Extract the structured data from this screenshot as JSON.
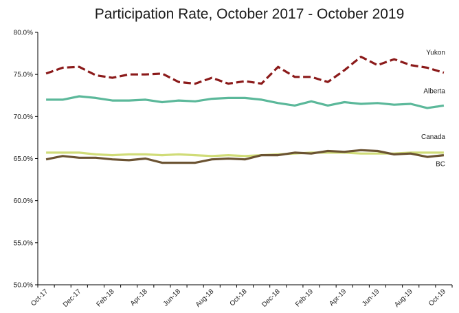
{
  "chart_data": {
    "type": "line",
    "title": "Participation Rate, October 2017 - October 2019",
    "xlabel": "",
    "ylabel": "",
    "grid": false,
    "legend": "inline labels at right end of lines",
    "ylim": [
      0.5,
      0.8
    ],
    "yticks": [
      0.5,
      0.55,
      0.6,
      0.65,
      0.7,
      0.75,
      0.8
    ],
    "ytick_labels": [
      "50.0%",
      "55.0%",
      "60.0%",
      "65.0%",
      "70.0%",
      "75.0%",
      "80.0%"
    ],
    "x": [
      "Oct-17",
      "Nov-17",
      "Dec-17",
      "Jan-18",
      "Feb-18",
      "Mar-18",
      "Apr-18",
      "May-18",
      "Jun-18",
      "Jul-18",
      "Aug-18",
      "Sep-18",
      "Oct-18",
      "Nov-18",
      "Dec-18",
      "Jan-19",
      "Feb-19",
      "Mar-19",
      "Apr-19",
      "May-19",
      "Jun-19",
      "Jul-19",
      "Aug-19",
      "Sep-19",
      "Oct-19"
    ],
    "x_labeled": [
      "Oct-17",
      "Dec-17",
      "Feb-18",
      "Apr-18",
      "Jun-18",
      "Aug-18",
      "Oct-18",
      "Dec-18",
      "Feb-19",
      "Apr-19",
      "Jun-19",
      "Aug-19",
      "Oct-19"
    ],
    "series": [
      {
        "name": "Yukon",
        "color": "#8b1a1a",
        "dash": true,
        "values": [
          0.751,
          0.758,
          0.759,
          0.749,
          0.746,
          0.75,
          0.75,
          0.751,
          0.741,
          0.739,
          0.746,
          0.739,
          0.742,
          0.739,
          0.759,
          0.747,
          0.747,
          0.741,
          0.755,
          0.771,
          0.761,
          0.768,
          0.761,
          0.758,
          0.752
        ]
      },
      {
        "name": "Alberta",
        "color": "#5bb89a",
        "dash": false,
        "values": [
          0.72,
          0.72,
          0.724,
          0.722,
          0.719,
          0.719,
          0.72,
          0.717,
          0.719,
          0.718,
          0.721,
          0.722,
          0.722,
          0.72,
          0.716,
          0.713,
          0.718,
          0.713,
          0.717,
          0.715,
          0.716,
          0.714,
          0.715,
          0.71,
          0.713
        ]
      },
      {
        "name": "Canada",
        "color": "#d0dc78",
        "dash": false,
        "values": [
          0.657,
          0.657,
          0.657,
          0.655,
          0.654,
          0.655,
          0.655,
          0.654,
          0.655,
          0.654,
          0.653,
          0.654,
          0.653,
          0.654,
          0.655,
          0.656,
          0.657,
          0.657,
          0.657,
          0.656,
          0.656,
          0.656,
          0.657,
          0.657,
          0.657
        ]
      },
      {
        "name": "BC",
        "color": "#6b5332",
        "dash": false,
        "values": [
          0.649,
          0.653,
          0.651,
          0.651,
          0.649,
          0.648,
          0.65,
          0.645,
          0.645,
          0.645,
          0.649,
          0.65,
          0.649,
          0.654,
          0.654,
          0.657,
          0.656,
          0.659,
          0.658,
          0.66,
          0.659,
          0.655,
          0.656,
          0.652,
          0.654
        ]
      }
    ]
  }
}
